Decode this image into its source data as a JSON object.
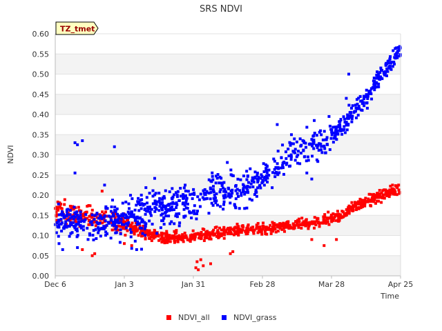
{
  "chart_data": {
    "type": "scatter",
    "title": "SRS NDVI",
    "xlabel": "Time",
    "ylabel": "NDVI",
    "ylim": [
      0.0,
      0.6
    ],
    "y_ticks": [
      "0.00",
      "0.05",
      "0.10",
      "0.15",
      "0.20",
      "0.25",
      "0.30",
      "0.35",
      "0.40",
      "0.45",
      "0.50",
      "0.55",
      "0.60"
    ],
    "x_ticks": [
      {
        "label": "Dec 6",
        "day": 0
      },
      {
        "label": "Jan 3",
        "day": 28
      },
      {
        "label": "Jan 31",
        "day": 56
      },
      {
        "label": "Feb 28",
        "day": 84
      },
      {
        "label": "Mar 28",
        "day": 112
      },
      {
        "label": "Apr 25",
        "day": 140
      }
    ],
    "xlim_days": [
      0,
      140
    ],
    "annotation": "TZ_tmet",
    "legend_position": "bottom-center",
    "grid": "horizontal alternating bands",
    "series": [
      {
        "name": "NDVI_all",
        "color": "#ff0000",
        "trend_day": [
          0,
          10,
          20,
          28,
          35,
          42,
          50,
          56,
          60,
          70,
          80,
          90,
          100,
          105,
          110,
          116,
          120,
          126,
          130,
          134,
          138,
          140
        ],
        "trend_value": [
          0.16,
          0.15,
          0.14,
          0.125,
          0.11,
          0.095,
          0.095,
          0.095,
          0.1,
          0.11,
          0.115,
          0.12,
          0.13,
          0.135,
          0.14,
          0.15,
          0.17,
          0.185,
          0.195,
          0.205,
          0.21,
          0.215
        ],
        "outliers": [
          {
            "day": 57,
            "value": 0.02
          },
          {
            "day": 58,
            "value": 0.015
          },
          {
            "day": 59,
            "value": 0.04
          },
          {
            "day": 57.5,
            "value": 0.035
          },
          {
            "day": 60,
            "value": 0.025
          },
          {
            "day": 63,
            "value": 0.03
          },
          {
            "day": 15,
            "value": 0.05
          },
          {
            "day": 16,
            "value": 0.055
          },
          {
            "day": 11,
            "value": 0.065
          },
          {
            "day": 28,
            "value": 0.08
          },
          {
            "day": 31,
            "value": 0.075
          },
          {
            "day": 71,
            "value": 0.055
          },
          {
            "day": 72,
            "value": 0.06
          },
          {
            "day": 104,
            "value": 0.09
          },
          {
            "day": 109,
            "value": 0.075
          },
          {
            "day": 114,
            "value": 0.09
          },
          {
            "day": 19,
            "value": 0.21
          }
        ]
      },
      {
        "name": "NDVI_grass",
        "color": "#0000ff",
        "trend_day": [
          0,
          10,
          20,
          28,
          35,
          42,
          50,
          56,
          62,
          70,
          78,
          84,
          90,
          96,
          100,
          106,
          110,
          116,
          120,
          126,
          130,
          136,
          140
        ],
        "trend_value": [
          0.13,
          0.13,
          0.13,
          0.14,
          0.16,
          0.17,
          0.18,
          0.19,
          0.2,
          0.21,
          0.22,
          0.24,
          0.27,
          0.3,
          0.315,
          0.325,
          0.335,
          0.37,
          0.4,
          0.44,
          0.48,
          0.53,
          0.56
        ],
        "outliers": [
          {
            "day": 8,
            "value": 0.33
          },
          {
            "day": 9,
            "value": 0.325
          },
          {
            "day": 11,
            "value": 0.335
          },
          {
            "day": 24,
            "value": 0.32
          },
          {
            "day": 8,
            "value": 0.255
          },
          {
            "day": 9,
            "value": 0.07
          },
          {
            "day": 3,
            "value": 0.065
          },
          {
            "day": 33,
            "value": 0.065
          },
          {
            "day": 31,
            "value": 0.068
          },
          {
            "day": 35,
            "value": 0.066
          },
          {
            "day": 90,
            "value": 0.375
          },
          {
            "day": 104,
            "value": 0.24
          },
          {
            "day": 102,
            "value": 0.255
          },
          {
            "day": 118,
            "value": 0.44
          },
          {
            "day": 119,
            "value": 0.5
          },
          {
            "day": 105,
            "value": 0.385
          },
          {
            "day": 111,
            "value": 0.395
          },
          {
            "day": 20,
            "value": 0.225
          }
        ]
      }
    ],
    "legend": [
      {
        "label": "NDVI_all",
        "color": "#ff0000"
      },
      {
        "label": "NDVI_grass",
        "color": "#0000ff"
      }
    ]
  }
}
